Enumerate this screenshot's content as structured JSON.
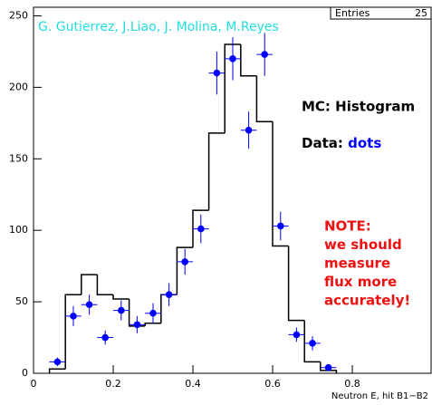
{
  "chart_data": {
    "type": "histogram",
    "x_label": "Neutron E, hit B1−B2",
    "bins": [
      0.04,
      0.08,
      0.12,
      0.16,
      0.2,
      0.24,
      0.28,
      0.32,
      0.36,
      0.4,
      0.44,
      0.48,
      0.52,
      0.56,
      0.6,
      0.64,
      0.68,
      0.72,
      0.76
    ],
    "values": [
      3,
      55,
      69,
      55,
      52,
      33,
      35,
      55,
      88,
      114,
      168,
      230,
      208,
      176,
      89,
      37,
      8,
      2
    ],
    "color": "#000000",
    "overlay": {
      "type": "scatter",
      "color": "#0000ff",
      "x": [
        0.06,
        0.1,
        0.14,
        0.18,
        0.22,
        0.26,
        0.3,
        0.34,
        0.38,
        0.42,
        0.46,
        0.5,
        0.54,
        0.58,
        0.62,
        0.66,
        0.7,
        0.74
      ],
      "values": [
        8,
        40,
        48,
        25,
        44,
        34,
        42,
        55,
        78,
        101,
        210,
        220,
        170,
        223,
        103,
        27,
        21,
        4
      ],
      "errors": [
        3,
        7,
        7,
        5,
        7,
        6,
        7,
        8,
        9,
        10,
        15,
        15,
        13,
        15,
        10,
        5,
        5,
        2
      ],
      "xerr": 0.02
    },
    "xlim": [
      0,
      1
    ],
    "ylim": [
      0,
      256
    ],
    "xticks": [
      0,
      0.2,
      0.4,
      0.6,
      0.8
    ],
    "yticks": [
      0,
      50,
      100,
      150,
      200,
      250
    ],
    "stats": {
      "label": "Entries",
      "value": 25
    },
    "annotations": {
      "authors": "G. Gutierrez, J.Liao, J. Molina, M.Reyes",
      "mc": "MC: Histogram",
      "data_label": "Data:",
      "data_word": "dots",
      "note": [
        "NOTE:",
        "we should",
        "measure",
        "flux more",
        "accurately!"
      ]
    }
  }
}
